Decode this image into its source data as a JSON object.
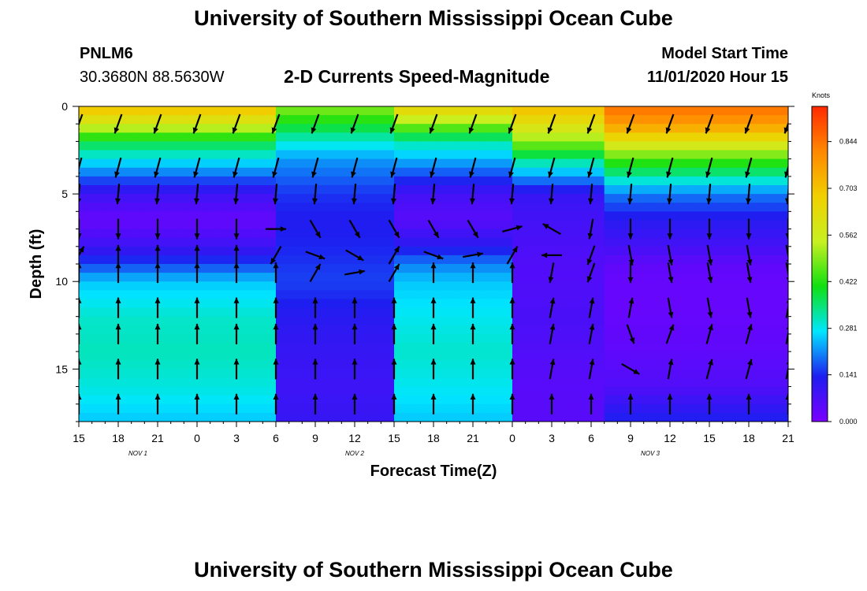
{
  "header": {
    "title": "University of Southern Mississippi Ocean Cube",
    "station": "PNLM6",
    "coords": "30.3680N 88.5630W",
    "subtitle": "2-D Currents Speed-Magnitude",
    "model_start_label": "Model Start Time",
    "model_start_value": "11/01/2020 Hour 15"
  },
  "footer": {
    "title": "University of Southern Mississippi Ocean Cube"
  },
  "chart_data": {
    "type": "heatmap",
    "title": "2-D Currents Speed-Magnitude",
    "xlabel": "Forecast Time(Z)",
    "ylabel": "Depth (ft)",
    "ylim": [
      0,
      18
    ],
    "y_ticks": [
      0,
      5,
      10,
      15
    ],
    "y_tick_labels": [
      "0",
      "5",
      "10",
      "15"
    ],
    "x_range_hours": [
      0,
      54
    ],
    "x_ticks": [
      0,
      3,
      6,
      9,
      12,
      15,
      18,
      21,
      24,
      27,
      30,
      33,
      36,
      39,
      42,
      45,
      48,
      51,
      54
    ],
    "x_tick_labels": [
      "15",
      "18",
      "21",
      "0",
      "3",
      "6",
      "9",
      "12",
      "15",
      "18",
      "21",
      "0",
      "3",
      "6",
      "9",
      "12",
      "15",
      "18",
      "21"
    ],
    "date_labels": [
      {
        "label": "NOV 1",
        "hour": 4.5
      },
      {
        "label": "NOV 2",
        "hour": 21
      },
      {
        "label": "NOV 3",
        "hour": 43.5
      }
    ],
    "colorbar": {
      "unit": "Knots",
      "min": 0.0,
      "max": 0.95,
      "tick_values": [
        0.0,
        0.141,
        0.281,
        0.422,
        0.562,
        0.703,
        0.844
      ],
      "tick_labels": [
        "0.000",
        "0.141",
        "0.281",
        "0.422",
        "0.562",
        "0.703",
        "0.844"
      ],
      "colors": [
        "#7a00ff",
        "#1e1ef0",
        "#00e6ff",
        "#10e010",
        "#c8f020",
        "#f0d000",
        "#ff8800",
        "#ff2a00"
      ]
    },
    "speed_profile_phases": [
      {
        "hours": [
          0,
          15
        ],
        "depth_ft": [
          0,
          1,
          2,
          3,
          5,
          6.5,
          8,
          9,
          10,
          12,
          14,
          16,
          18
        ],
        "speed_kn": [
          0.72,
          0.58,
          0.38,
          0.28,
          0.09,
          0.03,
          0.09,
          0.16,
          0.25,
          0.3,
          0.31,
          0.29,
          0.25
        ]
      },
      {
        "hours": [
          15,
          24
        ],
        "depth_ft": [
          0,
          1,
          2,
          3,
          5,
          6.5,
          8,
          9,
          10,
          12,
          14,
          16,
          18
        ],
        "speed_kn": [
          0.5,
          0.4,
          0.3,
          0.22,
          0.15,
          0.13,
          0.14,
          0.15,
          0.16,
          0.12,
          0.1,
          0.09,
          0.1
        ]
      },
      {
        "hours": [
          24,
          33
        ],
        "depth_ft": [
          0,
          1,
          2,
          3,
          5,
          6.5,
          8,
          9,
          10,
          12,
          14,
          16,
          18
        ],
        "speed_kn": [
          0.68,
          0.5,
          0.32,
          0.24,
          0.08,
          0.05,
          0.12,
          0.2,
          0.25,
          0.28,
          0.3,
          0.28,
          0.25
        ]
      },
      {
        "hours": [
          33,
          40
        ],
        "depth_ft": [
          0,
          1,
          2,
          3,
          5,
          6.5,
          8,
          9,
          10,
          12,
          14,
          16,
          18
        ],
        "speed_kn": [
          0.72,
          0.62,
          0.5,
          0.34,
          0.1,
          0.08,
          0.07,
          0.06,
          0.06,
          0.07,
          0.06,
          0.05,
          0.05
        ]
      },
      {
        "hours": [
          40,
          54
        ],
        "depth_ft": [
          0,
          1,
          2,
          3,
          5,
          6.5,
          8,
          9,
          10,
          12,
          14,
          16,
          18
        ],
        "speed_kn": [
          0.85,
          0.78,
          0.62,
          0.45,
          0.2,
          0.12,
          0.08,
          0.04,
          0.03,
          0.03,
          0.04,
          0.06,
          0.14
        ]
      }
    ],
    "vector_time_hours": [
      0,
      3,
      6,
      9,
      12,
      15,
      18,
      21,
      24,
      27,
      30,
      33,
      36,
      39,
      42,
      45,
      48,
      51,
      54
    ],
    "vector_depths_ft": [
      1,
      3.5,
      5,
      7,
      8.5,
      9.5,
      11.5,
      13,
      15,
      17
    ],
    "vector_directions_deg": [
      [
        200,
        200,
        200,
        200,
        200,
        200,
        200,
        200,
        200,
        200,
        200,
        200,
        200,
        200,
        200,
        200,
        200,
        200,
        200
      ],
      [
        195,
        195,
        195,
        195,
        195,
        195,
        195,
        195,
        195,
        195,
        195,
        195,
        195,
        195,
        195,
        195,
        195,
        195,
        195
      ],
      [
        185,
        185,
        185,
        185,
        185,
        185,
        185,
        185,
        185,
        185,
        185,
        185,
        185,
        185,
        185,
        185,
        185,
        185,
        185
      ],
      [
        180,
        180,
        180,
        180,
        180,
        90,
        150,
        150,
        150,
        150,
        150,
        75,
        300,
        190,
        180,
        180,
        180,
        180,
        180
      ],
      [
        30,
        0,
        0,
        0,
        0,
        210,
        110,
        120,
        30,
        110,
        80,
        30,
        270,
        200,
        170,
        170,
        170,
        170,
        170
      ],
      [
        0,
        0,
        0,
        0,
        0,
        0,
        30,
        80,
        30,
        0,
        0,
        0,
        190,
        200,
        180,
        170,
        170,
        170,
        170
      ],
      [
        0,
        0,
        0,
        0,
        0,
        0,
        0,
        0,
        0,
        0,
        0,
        0,
        10,
        10,
        10,
        170,
        170,
        170,
        10
      ],
      [
        0,
        0,
        0,
        0,
        0,
        0,
        0,
        0,
        0,
        0,
        0,
        0,
        10,
        10,
        160,
        20,
        15,
        15,
        10
      ],
      [
        0,
        0,
        0,
        0,
        0,
        0,
        0,
        0,
        0,
        0,
        0,
        0,
        10,
        10,
        120,
        10,
        15,
        15,
        10
      ],
      [
        0,
        0,
        0,
        0,
        0,
        0,
        0,
        0,
        0,
        0,
        0,
        0,
        0,
        0,
        0,
        0,
        0,
        0,
        0
      ]
    ]
  }
}
